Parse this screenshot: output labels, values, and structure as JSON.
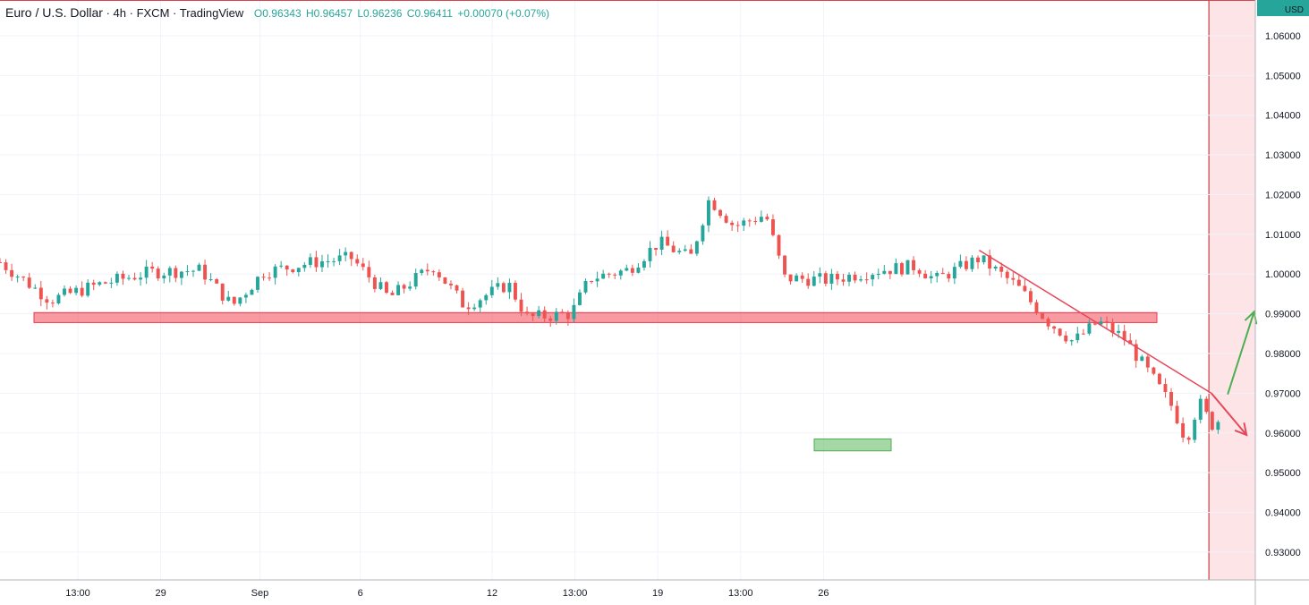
{
  "header": {
    "symbol": "Euro / U.S. Dollar",
    "interval": "4h",
    "source": "FXCM",
    "platform": "TradingView",
    "open": "O0.96343",
    "high": "H0.96457",
    "low": "L0.96236",
    "close": "C0.96411",
    "change": "+0.00070 (+0.07%)"
  },
  "currency": "USD",
  "colors": {
    "up": "#26a69a",
    "down": "#ef5350",
    "zone": "#f23645",
    "support": "#4caf50",
    "arrow_up": "#4caf50"
  },
  "chart_data": {
    "type": "candlestick",
    "yticks": [
      "1.06000",
      "1.05000",
      "1.04000",
      "1.03000",
      "1.02000",
      "1.01000",
      "1.00000",
      "0.99000",
      "0.98000",
      "0.97000",
      "0.96000",
      "0.95000",
      "0.94000",
      "0.93000"
    ],
    "ylim": [
      0.923,
      1.069
    ],
    "xticks": [
      "13:00",
      "29",
      "Sep",
      "6",
      "12",
      "13:00",
      "19",
      "13:00",
      "26"
    ],
    "grid": true,
    "price_labels": {
      "level": "0.96947",
      "current": "0.96411"
    },
    "level_value": 0.96947,
    "current_value": 0.96411,
    "resistance_zone": [
      0.9878,
      0.9903
    ],
    "support_zone": [
      0.9555,
      0.9585
    ],
    "trendline": [
      [
        0.78,
        1.006
      ],
      [
        0.965,
        0.97
      ]
    ],
    "forecast_down": [
      [
        0.965,
        0.97
      ],
      [
        0.993,
        0.9595
      ]
    ],
    "forecast_up": [
      [
        0.978,
        0.9697
      ],
      [
        0.999,
        0.9905
      ]
    ],
    "future_shade_start": 0.963,
    "key_points": [
      {
        "t": 0,
        "c": 1.003
      },
      {
        "t": 0.04,
        "c": 0.9935
      },
      {
        "t": 0.08,
        "c": 0.9975
      },
      {
        "t": 0.12,
        "c": 1.0005
      },
      {
        "t": 0.16,
        "c": 1.001
      },
      {
        "t": 0.185,
        "c": 0.992
      },
      {
        "t": 0.21,
        "c": 1.0005
      },
      {
        "t": 0.25,
        "c": 1.003
      },
      {
        "t": 0.28,
        "c": 1.004
      },
      {
        "t": 0.31,
        "c": 0.994
      },
      {
        "t": 0.345,
        "c": 1.002
      },
      {
        "t": 0.37,
        "c": 0.992
      },
      {
        "t": 0.405,
        "c": 0.9975
      },
      {
        "t": 0.42,
        "c": 0.989
      },
      {
        "t": 0.455,
        "c": 0.99
      },
      {
        "t": 0.47,
        "c": 0.999
      },
      {
        "t": 0.5,
        "c": 1.001
      },
      {
        "t": 0.525,
        "c": 1.008
      },
      {
        "t": 0.55,
        "c": 1.004
      },
      {
        "t": 0.565,
        "c": 1.019
      },
      {
        "t": 0.585,
        "c": 1.012
      },
      {
        "t": 0.61,
        "c": 1.015
      },
      {
        "t": 0.625,
        "c": 0.999
      },
      {
        "t": 0.66,
        "c": 0.9985
      },
      {
        "t": 0.7,
        "c": 1.001
      },
      {
        "t": 0.73,
        "c": 1.002
      },
      {
        "t": 0.745,
        "c": 0.9985
      },
      {
        "t": 0.78,
        "c": 1.004
      },
      {
        "t": 0.81,
        "c": 0.997
      },
      {
        "t": 0.835,
        "c": 0.988
      },
      {
        "t": 0.855,
        "c": 0.983
      },
      {
        "t": 0.875,
        "c": 0.988
      },
      {
        "t": 0.895,
        "c": 0.984
      },
      {
        "t": 0.92,
        "c": 0.973
      },
      {
        "t": 0.935,
        "c": 0.966
      },
      {
        "t": 0.945,
        "c": 0.958
      },
      {
        "t": 0.955,
        "c": 0.968
      },
      {
        "t": 0.965,
        "c": 0.962
      },
      {
        "t": 0.975,
        "c": 0.9641
      }
    ]
  }
}
